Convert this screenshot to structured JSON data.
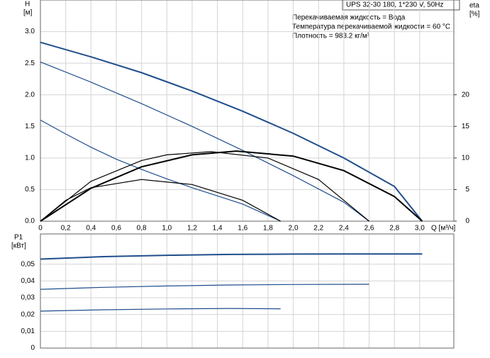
{
  "chart_data": [
    {
      "type": "line",
      "info_title": "UPS 32-30 180, 1*230 V, 50Hz",
      "info_lines": [
        "Перекачиваемая жидкость = Вода",
        "Температура перекачиваемой жидкости = 60 °C",
        "Плотность = 983.2 кг/м³"
      ],
      "ylabel": "H",
      "ylabel_unit": "[м]",
      "y2label": "eta",
      "y2label_unit": "[%]",
      "xlabel": "Q [м³/ч]",
      "xlim": [
        0,
        3.27
      ],
      "xticks": [
        0,
        {
          "value": 0.2,
          "label": "0,2"
        },
        {
          "value": 0.4,
          "label": "0,4"
        },
        {
          "value": 0.6,
          "label": "0,6"
        },
        {
          "value": 0.8,
          "label": "0,8"
        },
        {
          "value": 1.0,
          "label": "1,0"
        },
        {
          "value": 1.2,
          "label": "1,2"
        },
        {
          "value": 1.4,
          "label": "1,4"
        },
        {
          "value": 1.6,
          "label": "1,6"
        },
        {
          "value": 1.8,
          "label": "1,8"
        },
        {
          "value": 2.0,
          "label": "2,0"
        },
        {
          "value": 2.2,
          "label": "2,2"
        },
        {
          "value": 2.4,
          "label": "2,4"
        },
        {
          "value": 2.6,
          "label": "2,6"
        },
        {
          "value": 2.8,
          "label": "2,8"
        },
        {
          "value": 3.0,
          "label": "3,0"
        }
      ],
      "ylim": [
        0,
        3.5
      ],
      "yticks": [
        {
          "value": 0,
          "label": "0.0"
        },
        {
          "value": 0.5,
          "label": "0.5"
        },
        {
          "value": 1,
          "label": "1.0"
        },
        {
          "value": 1.5,
          "label": "1.5"
        },
        {
          "value": 2,
          "label": "2.0"
        },
        {
          "value": 2.5,
          "label": "2.5"
        },
        {
          "value": 3,
          "label": "3.0"
        }
      ],
      "y2lim": [
        0,
        35
      ],
      "y2ticks": [
        0,
        5,
        10,
        15,
        20
      ],
      "grid": true,
      "series": [
        {
          "color": "#1f4e8c",
          "width": 2,
          "x": [
            0,
            0.4,
            0.8,
            1.2,
            1.6,
            2.0,
            2.4,
            2.8,
            3.02
          ],
          "values": [
            2.83,
            2.6,
            2.35,
            2.06,
            1.74,
            1.39,
            1.0,
            0.55,
            0
          ]
        },
        {
          "color": "#1f4e8c",
          "width": 1.2,
          "x": [
            0,
            0.4,
            0.8,
            1.2,
            1.6,
            2.0,
            2.4,
            2.6
          ],
          "values": [
            2.52,
            2.2,
            1.86,
            1.5,
            1.12,
            0.72,
            0.3,
            0
          ]
        },
        {
          "color": "#1f4e8c",
          "width": 1.2,
          "x": [
            0,
            0.2,
            0.4,
            0.6,
            0.8,
            1.0,
            1.2,
            1.4,
            1.6,
            1.9
          ],
          "values": [
            1.6,
            1.38,
            1.17,
            0.98,
            0.82,
            0.67,
            0.53,
            0.4,
            0.27,
            0
          ]
        },
        {
          "color": "#000000",
          "width": 2,
          "axis": "y2",
          "x": [
            0,
            0.4,
            0.8,
            1.2,
            1.55,
            2.0,
            2.4,
            2.8,
            3.02
          ],
          "values": [
            0,
            5.2,
            8.6,
            10.5,
            11.1,
            10.3,
            8.0,
            3.9,
            0
          ]
        },
        {
          "color": "#000000",
          "width": 1.2,
          "axis": "y2",
          "x": [
            0,
            0.4,
            0.8,
            1.0,
            1.35,
            1.8,
            2.2,
            2.6
          ],
          "values": [
            0,
            6.3,
            9.6,
            10.5,
            11.0,
            10.0,
            6.6,
            0
          ]
        },
        {
          "color": "#000000",
          "width": 1.2,
          "axis": "y2",
          "x": [
            0,
            0.2,
            0.4,
            0.8,
            1.2,
            1.6,
            1.9
          ],
          "values": [
            0,
            3.3,
            5.3,
            6.6,
            5.8,
            3.3,
            0
          ]
        }
      ]
    },
    {
      "type": "line",
      "ylabel": "P1",
      "ylabel_unit": "[кВт]",
      "xlim": [
        0,
        3.27
      ],
      "ylim": [
        0,
        0.068
      ],
      "yticks": [
        0,
        {
          "value": 0.01,
          "label": "0,01"
        },
        {
          "value": 0.02,
          "label": "0,02"
        },
        {
          "value": 0.03,
          "label": "0,03"
        },
        {
          "value": 0.04,
          "label": "0,04"
        },
        {
          "value": 0.05,
          "label": "0,05"
        }
      ],
      "grid": true,
      "series": [
        {
          "color": "#1f4e8c",
          "width": 2,
          "x": [
            0,
            0.5,
            1.0,
            1.5,
            2.0,
            2.5,
            3.02
          ],
          "values": [
            0.053,
            0.0545,
            0.0553,
            0.0558,
            0.056,
            0.0561,
            0.0561
          ]
        },
        {
          "color": "#1f4e8c",
          "width": 1.2,
          "x": [
            0,
            0.5,
            1.0,
            1.5,
            2.0,
            2.6
          ],
          "values": [
            0.035,
            0.0362,
            0.037,
            0.0376,
            0.0379,
            0.038
          ]
        },
        {
          "color": "#1f4e8c",
          "width": 1.2,
          "x": [
            0,
            0.5,
            1.0,
            1.5,
            1.9
          ],
          "values": [
            0.022,
            0.0228,
            0.0233,
            0.0236,
            0.0234
          ]
        }
      ]
    }
  ]
}
